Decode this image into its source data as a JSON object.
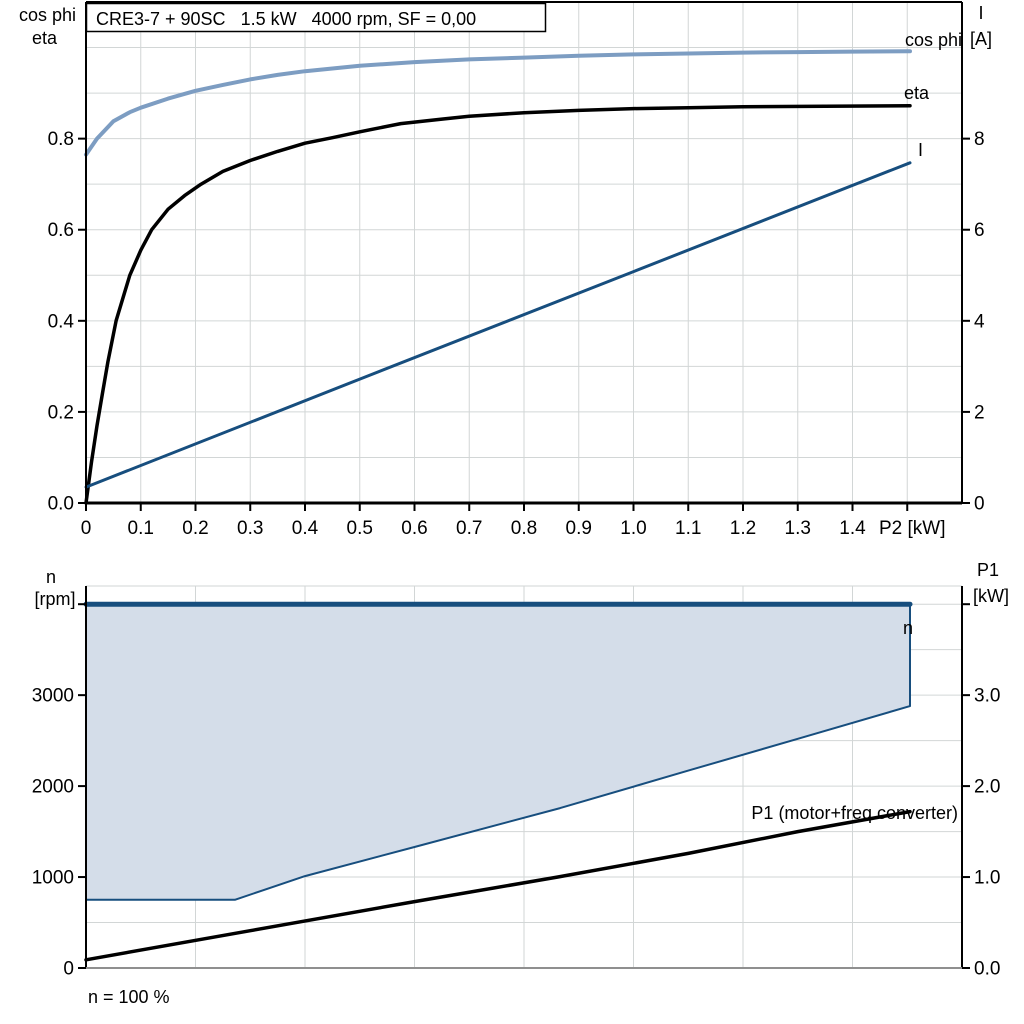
{
  "colors": {
    "cos_phi": "#7d9dc2",
    "eta": "#000000",
    "current": "#174e7e",
    "n_fill": "#d4dde9",
    "p1": "#000000",
    "grid": "#d2d6d6",
    "axis": "#000000",
    "axis_gray": "#8f8f8f"
  },
  "chart_data": [
    {
      "type": "line",
      "title": "CRE3-7 + 90SC   1.5 kW   4000 rpm, SF = 0,00",
      "x_axis": {
        "label": "P2 [kW]",
        "min": 0,
        "max": 1.6,
        "grid_step": 0.1,
        "tick_values": [
          0,
          0.1,
          0.2,
          0.3,
          0.4,
          0.5,
          0.6,
          0.7,
          0.8,
          0.9,
          1.0,
          1.1,
          1.2,
          1.3,
          1.4
        ],
        "tick_labels": [
          "0",
          "0.1",
          "0.2",
          "0.3",
          "0.4",
          "0.5",
          "0.6",
          "0.7",
          "0.8",
          "0.9",
          "1.0",
          "1.1",
          "1.2",
          "1.3",
          "1.4"
        ],
        "extra_tick_values": [
          1.5
        ]
      },
      "y_left": {
        "title_line1": "cos phi",
        "title_line2": "eta",
        "min": 0,
        "max": 1.1,
        "grid_step": 0.1,
        "tick_values": [
          0,
          0.2,
          0.4,
          0.6,
          0.8
        ],
        "tick_labels": [
          "0.0",
          "0.2",
          "0.4",
          "0.6",
          "0.8"
        ]
      },
      "y_right": {
        "title_line1": "I",
        "title_line2": "[A]",
        "min": 0,
        "max": 11,
        "grid_step": 1,
        "tick_values": [
          0,
          2,
          4,
          6,
          8
        ],
        "tick_labels": [
          "0",
          "2",
          "4",
          "6",
          "8"
        ]
      },
      "series": [
        {
          "name": "cos phi",
          "axis": "left",
          "color_key": "cos_phi",
          "width": 4,
          "points": [
            [
              0,
              0.765
            ],
            [
              0.02,
              0.8
            ],
            [
              0.05,
              0.838
            ],
            [
              0.08,
              0.858
            ],
            [
              0.1,
              0.868
            ],
            [
              0.15,
              0.888
            ],
            [
              0.2,
              0.905
            ],
            [
              0.25,
              0.918
            ],
            [
              0.3,
              0.93
            ],
            [
              0.35,
              0.94
            ],
            [
              0.4,
              0.948
            ],
            [
              0.5,
              0.96
            ],
            [
              0.6,
              0.968
            ],
            [
              0.7,
              0.974
            ],
            [
              0.8,
              0.978
            ],
            [
              0.9,
              0.982
            ],
            [
              1.0,
              0.985
            ],
            [
              1.1,
              0.987
            ],
            [
              1.2,
              0.989
            ],
            [
              1.3,
              0.99
            ],
            [
              1.4,
              0.991
            ],
            [
              1.505,
              0.992
            ]
          ]
        },
        {
          "name": "eta",
          "axis": "left",
          "color_key": "eta",
          "width": 3.5,
          "points": [
            [
              0,
              0
            ],
            [
              0.01,
              0.09
            ],
            [
              0.02,
              0.17
            ],
            [
              0.03,
              0.24
            ],
            [
              0.04,
              0.31
            ],
            [
              0.055,
              0.4
            ],
            [
              0.07,
              0.46
            ],
            [
              0.08,
              0.5
            ],
            [
              0.1,
              0.555
            ],
            [
              0.12,
              0.6
            ],
            [
              0.15,
              0.645
            ],
            [
              0.18,
              0.675
            ],
            [
              0.21,
              0.7
            ],
            [
              0.25,
              0.728
            ],
            [
              0.3,
              0.752
            ],
            [
              0.35,
              0.772
            ],
            [
              0.4,
              0.79
            ],
            [
              0.45,
              0.802
            ],
            [
              0.5,
              0.815
            ],
            [
              0.575,
              0.833
            ],
            [
              0.65,
              0.843
            ],
            [
              0.7,
              0.849
            ],
            [
              0.8,
              0.857
            ],
            [
              0.9,
              0.862
            ],
            [
              1.0,
              0.866
            ],
            [
              1.1,
              0.868
            ],
            [
              1.2,
              0.87
            ],
            [
              1.35,
              0.871
            ],
            [
              1.505,
              0.872
            ]
          ]
        },
        {
          "name": "I",
          "axis": "right",
          "color_key": "current",
          "width": 3,
          "points": [
            [
              0,
              0.35
            ],
            [
              0.5,
              2.72
            ],
            [
              1.0,
              5.08
            ],
            [
              1.505,
              7.47
            ]
          ]
        }
      ]
    },
    {
      "type": "area",
      "footnote": "n = 100 %",
      "x_axis": {
        "min": 0,
        "max": 1.6,
        "grid_step": 0.2
      },
      "y_left": {
        "title_line1": "n",
        "title_line2": "[rpm]",
        "min": 0,
        "max": 4200,
        "grid_step": 500,
        "tick_values": [
          0,
          1000,
          2000,
          3000
        ],
        "tick_labels": [
          "0",
          "1000",
          "2000",
          "3000"
        ],
        "extra_tick_values": [
          4000
        ]
      },
      "y_right": {
        "title_line1": "P1",
        "title_line2": "[kW]",
        "min": 0,
        "max": 4.2,
        "grid_step": 0.5,
        "tick_values": [
          0,
          1,
          2,
          3
        ],
        "tick_labels": [
          "0.0",
          "1.0",
          "2.0",
          "3.0"
        ],
        "extra_tick_values": [
          4
        ]
      },
      "series": [
        {
          "name": "n",
          "type": "area",
          "color_key": "current",
          "fill_key": "n_fill",
          "outline_width": 2,
          "top_line_width": 5,
          "polygon": [
            [
              0,
              4000
            ],
            [
              1.505,
              4000
            ],
            [
              1.505,
              2880
            ],
            [
              1.3,
              2520
            ],
            [
              1.1,
              2170
            ],
            [
              0.866,
              1758
            ],
            [
              0.6,
              1330
            ],
            [
              0.4,
              1010
            ],
            [
              0.272,
              750
            ],
            [
              0,
              750
            ]
          ],
          "top_line": [
            [
              0,
              4000
            ],
            [
              1.505,
              4000
            ]
          ]
        },
        {
          "name": "P1 (motor+freq.converter)",
          "type": "line",
          "axis": "right",
          "color_key": "p1",
          "width": 3.5,
          "points": [
            [
              0,
              0.09
            ],
            [
              0.3,
              0.41
            ],
            [
              0.6,
              0.73
            ],
            [
              0.862,
              1.0
            ],
            [
              1.1,
              1.26
            ],
            [
              1.3,
              1.5
            ],
            [
              1.505,
              1.72
            ]
          ]
        }
      ]
    }
  ]
}
